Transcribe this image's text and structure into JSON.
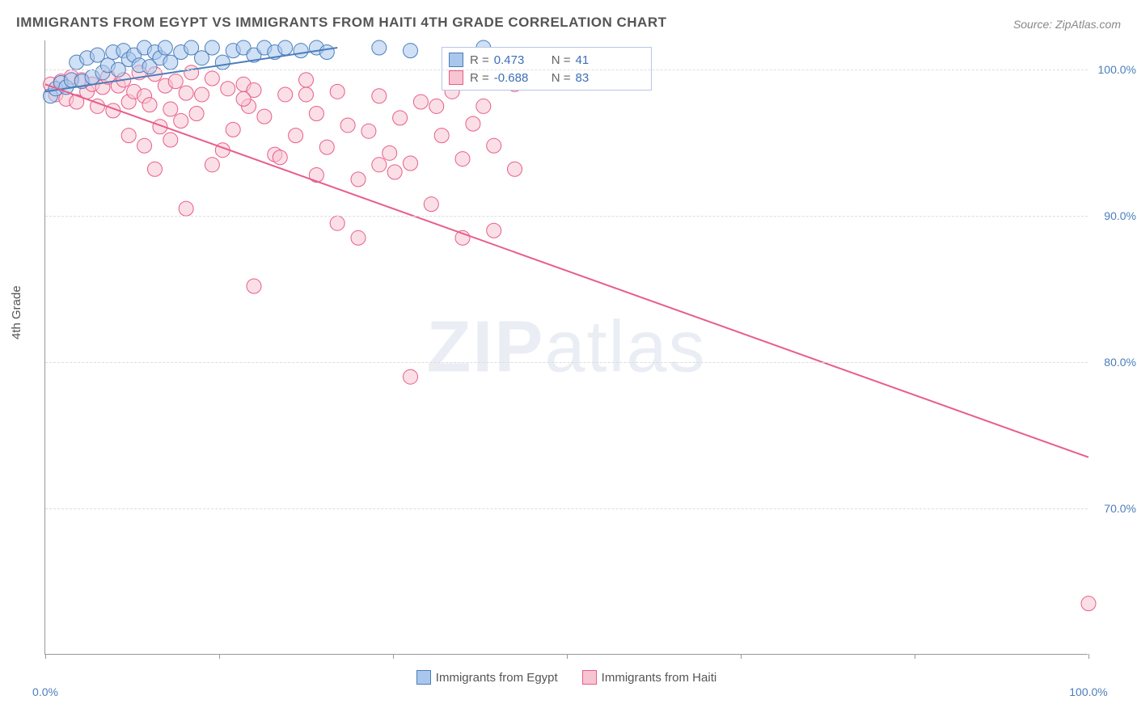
{
  "title": "IMMIGRANTS FROM EGYPT VS IMMIGRANTS FROM HAITI 4TH GRADE CORRELATION CHART",
  "source": "Source: ZipAtlas.com",
  "ylabel": "4th Grade",
  "watermark_a": "ZIP",
  "watermark_b": "atlas",
  "chart": {
    "type": "scatter_with_trend",
    "xlim": [
      0,
      100
    ],
    "ylim": [
      60,
      102
    ],
    "y_ticks": [
      70,
      80,
      90,
      100
    ],
    "y_tick_labels": [
      "70.0%",
      "80.0%",
      "90.0%",
      "100.0%"
    ],
    "x_ticks": [
      0,
      16.67,
      33.33,
      50,
      66.67,
      83.33,
      100
    ],
    "x_labels": {
      "0": "0.0%",
      "100": "100.0%"
    },
    "background_color": "#ffffff",
    "grid_color": "#dddddd",
    "series": [
      {
        "name": "Immigrants from Egypt",
        "color_fill": "#a9c6ec",
        "color_stroke": "#4a7ebb",
        "marker_radius": 9,
        "trend": {
          "x1": 0,
          "y1": 98.5,
          "x2": 28,
          "y2": 101.5,
          "stroke": "#4a7ebb",
          "width": 2
        },
        "R": "0.473",
        "N": "41",
        "points": [
          [
            0.5,
            98.2
          ],
          [
            1,
            98.7
          ],
          [
            1.5,
            99.1
          ],
          [
            2,
            98.8
          ],
          [
            2.5,
            99.3
          ],
          [
            3,
            100.5
          ],
          [
            3.5,
            99.2
          ],
          [
            4,
            100.8
          ],
          [
            4.5,
            99.5
          ],
          [
            5,
            101
          ],
          [
            5.5,
            99.8
          ],
          [
            6,
            100.3
          ],
          [
            6.5,
            101.2
          ],
          [
            7,
            100
          ],
          [
            7.5,
            101.3
          ],
          [
            8,
            100.7
          ],
          [
            8.5,
            101
          ],
          [
            9,
            100.3
          ],
          [
            9.5,
            101.5
          ],
          [
            10,
            100.2
          ],
          [
            10.5,
            101.2
          ],
          [
            11,
            100.8
          ],
          [
            11.5,
            101.5
          ],
          [
            12,
            100.5
          ],
          [
            13,
            101.2
          ],
          [
            14,
            101.5
          ],
          [
            15,
            100.8
          ],
          [
            16,
            101.5
          ],
          [
            17,
            100.5
          ],
          [
            18,
            101.3
          ],
          [
            19,
            101.5
          ],
          [
            20,
            101
          ],
          [
            21,
            101.5
          ],
          [
            22,
            101.2
          ],
          [
            23,
            101.5
          ],
          [
            24.5,
            101.3
          ],
          [
            26,
            101.5
          ],
          [
            27,
            101.2
          ],
          [
            32,
            101.5
          ],
          [
            35,
            101.3
          ],
          [
            42,
            101.5
          ]
        ]
      },
      {
        "name": "Immigrants from Haiti",
        "color_fill": "#f7c4d2",
        "color_stroke": "#e85d8a",
        "marker_radius": 9,
        "trend": {
          "x1": 0,
          "y1": 99,
          "x2": 100,
          "y2": 73.5,
          "stroke": "#e85d8a",
          "width": 2
        },
        "R": "-0.688",
        "N": "83",
        "points": [
          [
            0.5,
            99
          ],
          [
            1,
            98.3
          ],
          [
            1.5,
            99.2
          ],
          [
            2,
            98
          ],
          [
            2.5,
            99.5
          ],
          [
            3,
            97.8
          ],
          [
            3.5,
            99.3
          ],
          [
            4,
            98.5
          ],
          [
            4.5,
            99
          ],
          [
            5,
            97.5
          ],
          [
            5.5,
            98.8
          ],
          [
            6,
            99.5
          ],
          [
            6.5,
            97.2
          ],
          [
            7,
            98.9
          ],
          [
            7.5,
            99.3
          ],
          [
            8,
            97.8
          ],
          [
            8.5,
            98.5
          ],
          [
            9,
            99.8
          ],
          [
            9.5,
            98.2
          ],
          [
            10,
            97.6
          ],
          [
            10.5,
            99.7
          ],
          [
            11,
            96.1
          ],
          [
            11.5,
            98.9
          ],
          [
            12,
            97.3
          ],
          [
            12.5,
            99.2
          ],
          [
            13,
            96.5
          ],
          [
            13.5,
            98.4
          ],
          [
            14,
            99.8
          ],
          [
            14.5,
            97.0
          ],
          [
            15,
            98.3
          ],
          [
            16,
            99.4
          ],
          [
            17,
            94.5
          ],
          [
            17.5,
            98.7
          ],
          [
            18,
            95.9
          ],
          [
            19,
            99
          ],
          [
            19.5,
            97.5
          ],
          [
            20,
            98.6
          ],
          [
            21,
            96.8
          ],
          [
            22,
            94.2
          ],
          [
            23,
            98.3
          ],
          [
            24,
            95.5
          ],
          [
            25,
            99.3
          ],
          [
            26,
            97
          ],
          [
            27,
            94.7
          ],
          [
            28,
            98.5
          ],
          [
            29,
            96.2
          ],
          [
            30,
            92.5
          ],
          [
            31,
            95.8
          ],
          [
            32,
            98.2
          ],
          [
            33,
            94.3
          ],
          [
            34,
            96.7
          ],
          [
            35,
            93.6
          ],
          [
            36,
            97.8
          ],
          [
            37,
            90.8
          ],
          [
            38,
            95.5
          ],
          [
            39,
            98.5
          ],
          [
            40,
            93.9
          ],
          [
            41,
            96.3
          ],
          [
            42,
            97.5
          ],
          [
            43,
            94.8
          ],
          [
            8,
            95.5
          ],
          [
            9.5,
            94.8
          ],
          [
            10.5,
            93.2
          ],
          [
            12,
            95.2
          ],
          [
            13.5,
            90.5
          ],
          [
            16,
            93.5
          ],
          [
            20,
            85.2
          ],
          [
            22.5,
            94
          ],
          [
            26,
            92.8
          ],
          [
            28,
            89.5
          ],
          [
            33.5,
            93
          ],
          [
            35,
            79
          ],
          [
            30,
            88.5
          ],
          [
            32,
            93.5
          ],
          [
            37.5,
            97.5
          ],
          [
            40,
            88.5
          ],
          [
            45,
            99
          ],
          [
            48,
            101
          ],
          [
            43,
            89
          ],
          [
            19,
            98
          ],
          [
            100,
            63.5
          ],
          [
            45,
            93.2
          ],
          [
            25,
            98.3
          ]
        ]
      }
    ]
  },
  "legend_top": {
    "rows": [
      {
        "swatch_fill": "#a9c6ec",
        "swatch_stroke": "#4a7ebb",
        "R": "0.473",
        "N": "41"
      },
      {
        "swatch_fill": "#f7c4d2",
        "swatch_stroke": "#e85d8a",
        "R": "-0.688",
        "N": "83"
      }
    ],
    "r_label": "R =",
    "n_label": "N ="
  },
  "legend_bottom": [
    {
      "swatch_fill": "#a9c6ec",
      "swatch_stroke": "#4a7ebb",
      "label": "Immigrants from Egypt"
    },
    {
      "swatch_fill": "#f7c4d2",
      "swatch_stroke": "#e85d8a",
      "label": "Immigrants from Haiti"
    }
  ]
}
